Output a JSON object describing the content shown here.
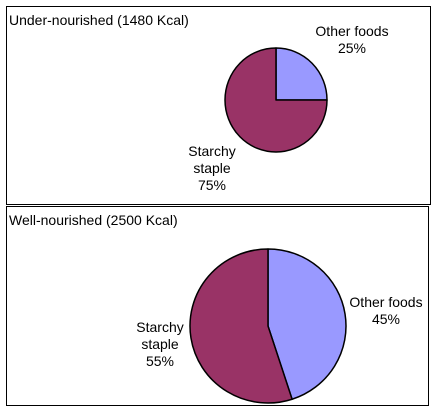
{
  "colors": {
    "other_foods": "#9999ff",
    "starchy_staple": "#993366",
    "outline": "#000000"
  },
  "chart_data": [
    {
      "type": "pie",
      "title": "Under-nourished (1480 Kcal)",
      "slices": [
        {
          "label_lines": [
            "Other foods"
          ],
          "percent_text": "25%",
          "value": 25
        },
        {
          "label_lines": [
            "Starchy",
            "staple"
          ],
          "percent_text": "75%",
          "value": 75
        }
      ]
    },
    {
      "type": "pie",
      "title": "Well-nourished (2500 Kcal)",
      "slices": [
        {
          "label_lines": [
            "Other foods"
          ],
          "percent_text": "45%",
          "value": 45
        },
        {
          "label_lines": [
            "Starchy",
            "staple"
          ],
          "percent_text": "55%",
          "value": 55
        }
      ]
    }
  ]
}
